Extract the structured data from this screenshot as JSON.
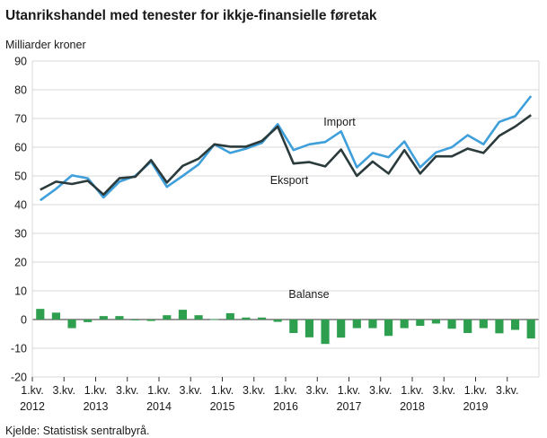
{
  "chart_data": {
    "type": "line",
    "title": "Utanrikshandel med tenester for ikkje-finansielle føretak",
    "ylabel": "Milliarder  kroner",
    "source": "Kjelde: Statistisk sentralbyrå.",
    "ylim": [
      -20,
      90
    ],
    "yticks": [
      90,
      80,
      70,
      60,
      50,
      40,
      30,
      20,
      10,
      0,
      -10,
      -20
    ],
    "grid": true,
    "x": [
      "2012K1",
      "2012K2",
      "2012K3",
      "2012K4",
      "2013K1",
      "2013K2",
      "2013K3",
      "2013K4",
      "2014K1",
      "2014K2",
      "2014K3",
      "2014K4",
      "2015K1",
      "2015K2",
      "2015K3",
      "2015K4",
      "2016K1",
      "2016K2",
      "2016K3",
      "2016K4",
      "2017K1",
      "2017K2",
      "2017K3",
      "2017K4",
      "2018K1",
      "2018K2",
      "2018K3",
      "2018K4",
      "2019K1",
      "2019K2",
      "2019K3",
      "2019K4"
    ],
    "xtick_labels": [
      {
        "index": 0,
        "line1": "1.kv.",
        "line2": "2012"
      },
      {
        "index": 2,
        "line1": "3.kv.",
        "line2": ""
      },
      {
        "index": 4,
        "line1": "1.kv.",
        "line2": "2013"
      },
      {
        "index": 6,
        "line1": "3.kv.",
        "line2": ""
      },
      {
        "index": 8,
        "line1": "1.kv.",
        "line2": "2014"
      },
      {
        "index": 10,
        "line1": "3.kv.",
        "line2": ""
      },
      {
        "index": 12,
        "line1": "1.kv.",
        "line2": "2015"
      },
      {
        "index": 14,
        "line1": "3.kv.",
        "line2": ""
      },
      {
        "index": 16,
        "line1": "1.kv.",
        "line2": "2016"
      },
      {
        "index": 18,
        "line1": "3.kv.",
        "line2": ""
      },
      {
        "index": 20,
        "line1": "1.kv.",
        "line2": "2017"
      },
      {
        "index": 22,
        "line1": "3.kv.",
        "line2": ""
      },
      {
        "index": 24,
        "line1": "1.kv.",
        "line2": "2018"
      },
      {
        "index": 26,
        "line1": "3.kv.",
        "line2": ""
      },
      {
        "index": 28,
        "line1": "1.kv.",
        "line2": "2019"
      },
      {
        "index": 30,
        "line1": "3.kv.",
        "line2": ""
      }
    ],
    "series": [
      {
        "name": "Import",
        "type": "line",
        "color": "#3e9fdb",
        "values": [
          41.5,
          45.5,
          50.2,
          49.2,
          42.5,
          48.0,
          50.0,
          55.0,
          46.2,
          50.0,
          54.0,
          61.0,
          58.0,
          59.5,
          61.5,
          68.0,
          59.0,
          61.0,
          61.8,
          65.5,
          53.0,
          58.0,
          56.5,
          62.0,
          53.0,
          58.2,
          60.0,
          64.2,
          61.0,
          68.8,
          70.8,
          77.8
        ]
      },
      {
        "name": "Eksport",
        "type": "line",
        "color": "#2b3a3b",
        "values": [
          45.2,
          48.0,
          47.2,
          48.3,
          43.5,
          49.2,
          49.7,
          55.5,
          47.7,
          53.5,
          56.0,
          61.0,
          60.2,
          60.2,
          62.2,
          67.2,
          54.3,
          54.8,
          53.3,
          59.2,
          50.0,
          55.0,
          50.8,
          59.0,
          50.8,
          56.8,
          56.8,
          59.5,
          58.0,
          64.0,
          67.2,
          71.2
        ]
      },
      {
        "name": "Balanse",
        "type": "bar",
        "color": "#2e9f4f",
        "values": [
          3.7,
          2.4,
          -3.0,
          -0.9,
          1.2,
          1.2,
          -0.3,
          -0.5,
          1.5,
          3.4,
          1.5,
          0.1,
          2.2,
          0.7,
          0.7,
          -0.8,
          -4.7,
          -6.2,
          -8.5,
          -6.3,
          -3.0,
          -3.0,
          -5.7,
          -3.0,
          -2.2,
          -1.4,
          -3.2,
          -4.7,
          -3.0,
          -4.8,
          -3.6,
          -6.6
        ]
      }
    ]
  }
}
